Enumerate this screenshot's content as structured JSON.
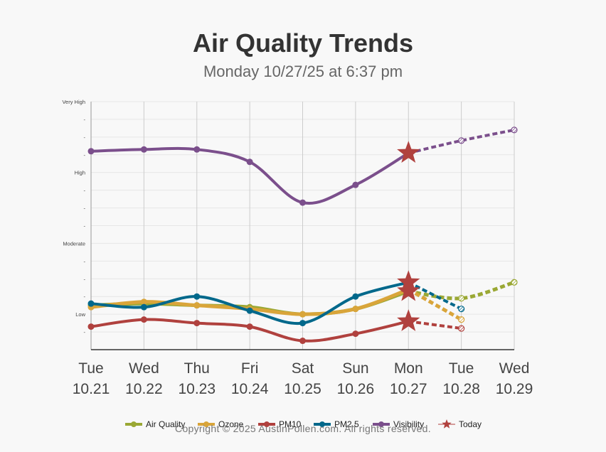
{
  "title": "Air Quality Trends",
  "subtitle": "Monday 10/27/25 at 6:37 pm",
  "copyright": "Copyright © 2025 AustinPollen.com.  All rights reserved.",
  "chart_data": {
    "type": "line",
    "title": "Air Quality Trends",
    "subtitle": "Monday 10/27/25 at 6:37 pm",
    "x_labels": [
      {
        "day": "Tue",
        "date": "10.21"
      },
      {
        "day": "Wed",
        "date": "10.22"
      },
      {
        "day": "Thu",
        "date": "10.23"
      },
      {
        "day": "Fri",
        "date": "10.24"
      },
      {
        "day": "Sat",
        "date": "10.25"
      },
      {
        "day": "Sun",
        "date": "10.26"
      },
      {
        "day": "Mon",
        "date": "10.27"
      },
      {
        "day": "Tue",
        "date": "10.28"
      },
      {
        "day": "Wed",
        "date": "10.29"
      }
    ],
    "ylim": [
      0,
      14
    ],
    "y_ticks": [
      {
        "value": 1,
        "label": "-"
      },
      {
        "value": 2,
        "label": "Low"
      },
      {
        "value": 3,
        "label": "-"
      },
      {
        "value": 4,
        "label": "-"
      },
      {
        "value": 5,
        "label": "-"
      },
      {
        "value": 6,
        "label": "Moderate"
      },
      {
        "value": 7,
        "label": "-"
      },
      {
        "value": 8,
        "label": "-"
      },
      {
        "value": 9,
        "label": "-"
      },
      {
        "value": 10,
        "label": "High"
      },
      {
        "value": 11,
        "label": "-"
      },
      {
        "value": 12,
        "label": "-"
      },
      {
        "value": 13,
        "label": "-"
      },
      {
        "value": 14,
        "label": "Very High"
      }
    ],
    "today_index": 6,
    "legend_position": "bottom",
    "series": [
      {
        "name": "Air Quality",
        "color": "#9aa834",
        "values": [
          2.5,
          2.6,
          2.5,
          2.4,
          2.0,
          2.3,
          3.3,
          2.9,
          3.8
        ],
        "stroke": 5
      },
      {
        "name": "Ozone",
        "color": "#d9a53a",
        "values": [
          2.4,
          2.7,
          2.5,
          2.3,
          2.0,
          2.3,
          3.4,
          1.7,
          null
        ],
        "stroke": 5
      },
      {
        "name": "PM10",
        "color": "#b0413e",
        "values": [
          1.3,
          1.7,
          1.5,
          1.3,
          0.5,
          0.9,
          1.6,
          1.2,
          null
        ],
        "stroke": 4
      },
      {
        "name": "PM2.5",
        "color": "#00688b",
        "values": [
          2.6,
          2.4,
          3.0,
          2.2,
          1.5,
          3.0,
          3.8,
          2.3,
          null
        ],
        "stroke": 4
      },
      {
        "name": "Visibility",
        "color": "#7b4f8c",
        "values": [
          11.2,
          11.3,
          11.3,
          10.6,
          8.3,
          9.3,
          11.1,
          11.8,
          12.4
        ],
        "stroke": 4
      }
    ],
    "today_marker": {
      "name": "Today",
      "color": "#b0413e"
    }
  }
}
